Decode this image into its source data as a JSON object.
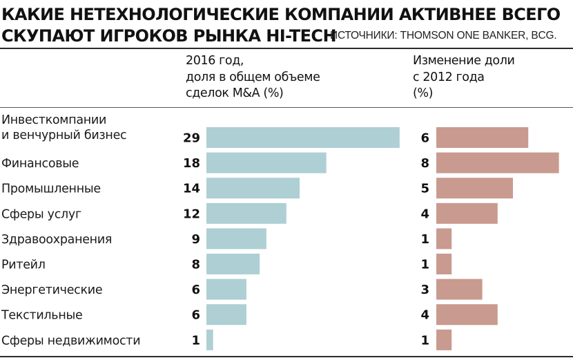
{
  "title": {
    "line1": "КАКИЕ НЕТЕХНОЛОГИЧЕСКИЕ КОМПАНИИ АКТИВНЕЕ ВСЕГО",
    "line2": "СКУПАЮТ ИГРОКОВ РЫНКА HI-TECH"
  },
  "source": "ИСТОЧНИКИ: THOMSON ONE BANKER, BCG.",
  "columns": {
    "left": [
      "2016 год,",
      "доля в общем объеме",
      "сделок M&A (%)"
    ],
    "right": [
      "Изменение доли",
      "с 2012 года",
      "(%)"
    ]
  },
  "chart_data": {
    "type": "bar",
    "orientation": "horizontal",
    "categories": [
      [
        "Инвесткомпании",
        "и венчурный бизнес"
      ],
      [
        "Финансовые"
      ],
      [
        "Промышленные"
      ],
      [
        "Сферы услуг"
      ],
      [
        "Здравоохранения"
      ],
      [
        "Ритейл"
      ],
      [
        "Энергетические"
      ],
      [
        "Текстильные"
      ],
      [
        "Сферы недвижимости"
      ]
    ],
    "series": [
      {
        "name": "2016 год, доля в общем объеме сделок M&A (%)",
        "values": [
          29,
          18,
          14,
          12,
          9,
          8,
          6,
          6,
          1
        ],
        "color": "#aecfd4"
      },
      {
        "name": "Изменение доли с 2012 года (%)",
        "values": [
          6,
          8,
          5,
          4,
          1,
          1,
          3,
          4,
          1
        ],
        "color": "#c99a8f"
      }
    ],
    "grid": false,
    "legend": "none"
  }
}
